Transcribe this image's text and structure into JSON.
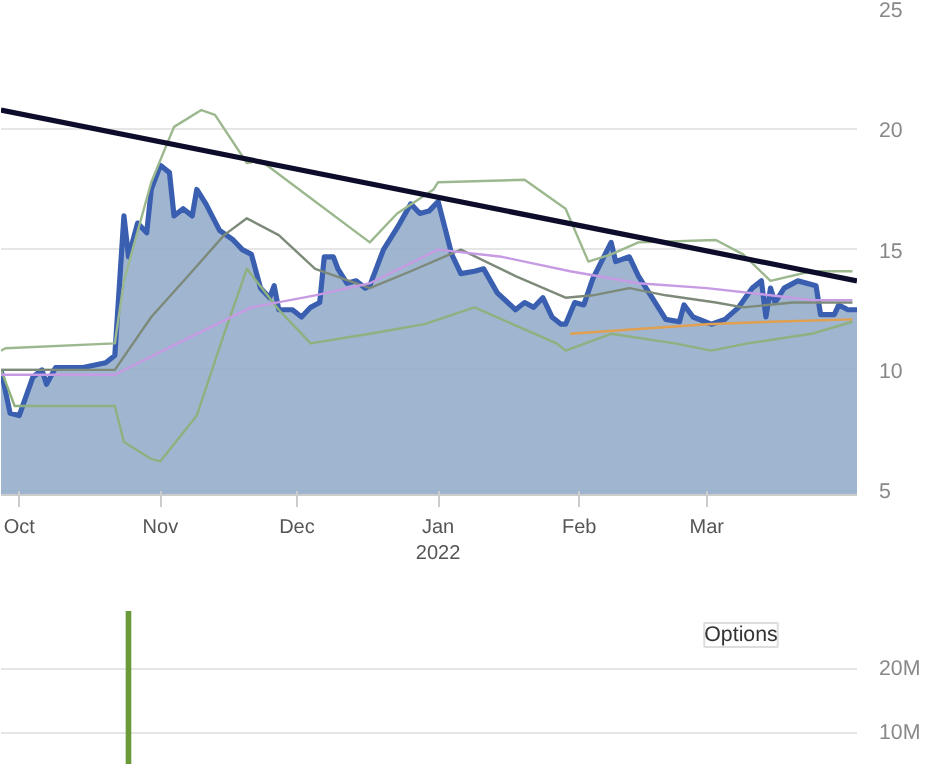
{
  "chart_data": [
    {
      "type": "line",
      "grid": "y",
      "tick_labels": "xy",
      "xlim": [
        "2021-09-27",
        "2022-04-03"
      ],
      "xticks": [
        {
          "value": "2021-10-01",
          "label": "Oct"
        },
        {
          "value": "2021-11-01",
          "label": "Nov"
        },
        {
          "value": "2021-12-01",
          "label": "Dec"
        },
        {
          "value": "2022-01-01",
          "label": "Jan\n2022"
        },
        {
          "value": "2022-02-01",
          "label": "Feb"
        },
        {
          "value": "2022-03-01",
          "label": "Mar"
        }
      ],
      "ylim": [
        4.8,
        25
      ],
      "yticks": [
        5,
        10,
        15,
        20,
        25
      ],
      "series": [
        {
          "type": "area",
          "color": "#3a5fb0",
          "x": [
            "2021-09-27",
            "2021-09-29",
            "2021-10-01",
            "2021-10-04",
            "2021-10-06",
            "2021-10-07",
            "2021-10-09",
            "2021-10-15",
            "2021-10-20",
            "2021-10-22",
            "2021-10-24",
            "2021-10-25",
            "2021-10-27",
            "2021-10-29",
            "2021-10-30",
            "2021-11-01",
            "2021-11-03",
            "2021-11-04",
            "2021-11-06",
            "2021-11-08",
            "2021-11-09",
            "2021-11-11",
            "2021-11-14",
            "2021-11-17",
            "2021-11-19",
            "2021-11-21",
            "2021-11-23",
            "2021-11-25",
            "2021-11-26",
            "2021-11-27",
            "2021-11-30",
            "2021-12-02",
            "2021-12-04",
            "2021-12-06",
            "2021-12-07",
            "2021-12-09",
            "2021-12-10",
            "2021-12-12",
            "2021-12-14",
            "2021-12-16",
            "2021-12-17",
            "2021-12-20",
            "2021-12-23",
            "2021-12-26",
            "2021-12-28",
            "2021-12-30",
            "2022-01-01",
            "2022-01-04",
            "2022-01-06",
            "2022-01-09",
            "2022-01-11",
            "2022-01-14",
            "2022-01-18",
            "2022-01-20",
            "2022-01-22",
            "2022-01-24",
            "2022-01-26",
            "2022-01-28",
            "2022-01-29",
            "2022-01-31",
            "2022-02-02",
            "2022-02-04",
            "2022-02-08",
            "2022-02-09",
            "2022-02-12",
            "2022-02-14",
            "2022-02-17",
            "2022-02-20",
            "2022-02-23",
            "2022-02-24",
            "2022-02-26",
            "2022-03-02",
            "2022-03-05",
            "2022-03-08",
            "2022-03-11",
            "2022-03-13",
            "2022-03-14",
            "2022-03-15",
            "2022-03-16",
            "2022-03-18",
            "2022-03-21",
            "2022-03-25",
            "2022-03-26",
            "2022-03-29",
            "2022-03-30",
            "2022-04-01",
            "2022-04-03"
          ],
          "values": [
            10.0,
            8.2,
            8.1,
            9.7,
            10.0,
            9.4,
            10.1,
            10.1,
            10.3,
            10.6,
            16.4,
            14.7,
            16.1,
            15.7,
            17.5,
            18.5,
            18.2,
            16.4,
            16.7,
            16.4,
            17.5,
            16.9,
            15.8,
            15.4,
            15.0,
            14.8,
            13.4,
            13.0,
            13.5,
            12.5,
            12.5,
            12.2,
            12.6,
            12.8,
            14.7,
            14.7,
            14.2,
            13.6,
            13.7,
            13.4,
            13.5,
            15.0,
            15.9,
            16.9,
            16.5,
            16.6,
            17.0,
            14.8,
            14.0,
            14.1,
            14.2,
            13.2,
            12.5,
            12.8,
            12.6,
            13.0,
            12.2,
            11.9,
            11.9,
            12.8,
            12.7,
            13.8,
            15.3,
            14.5,
            14.7,
            13.9,
            13.0,
            12.1,
            12.0,
            12.7,
            12.2,
            11.9,
            12.1,
            12.6,
            13.4,
            13.7,
            12.2,
            13.4,
            12.8,
            13.4,
            13.7,
            13.5,
            12.3,
            12.3,
            12.7,
            12.5,
            12.5
          ]
        },
        {
          "type": "line",
          "color": "#9cb88e",
          "x": [
            "2021-09-27",
            "2021-09-28",
            "2021-10-22",
            "2021-10-24",
            "2021-10-30",
            "2021-11-04",
            "2021-11-10",
            "2021-11-13",
            "2021-11-20",
            "2021-11-23",
            "2021-12-05",
            "2021-12-17",
            "2021-12-23",
            "2021-12-31",
            "2022-01-01",
            "2022-01-20",
            "2022-01-29",
            "2022-02-03",
            "2022-02-08",
            "2022-02-14",
            "2022-03-03",
            "2022-03-09",
            "2022-03-15",
            "2022-03-24",
            "2022-04-02"
          ],
          "values": [
            10.8,
            10.9,
            11.1,
            13.7,
            17.8,
            20.1,
            20.8,
            20.6,
            18.6,
            18.7,
            17.0,
            15.3,
            16.5,
            17.5,
            17.8,
            17.9,
            16.7,
            14.5,
            14.8,
            15.3,
            15.4,
            14.8,
            13.7,
            14.1,
            14.1
          ]
        },
        {
          "type": "line",
          "color": "#8fb07f",
          "x": [
            "2021-09-27",
            "2021-09-30",
            "2021-10-22",
            "2021-10-24",
            "2021-10-30",
            "2021-11-01",
            "2021-11-09",
            "2021-11-15",
            "2021-11-20",
            "2021-11-27",
            "2021-12-04",
            "2021-12-17",
            "2021-12-29",
            "2022-01-09",
            "2022-01-27",
            "2022-01-29",
            "2022-02-08",
            "2022-02-22",
            "2022-03-02",
            "2022-03-10",
            "2022-03-24",
            "2022-04-02"
          ],
          "values": [
            10.0,
            8.5,
            8.5,
            7.0,
            6.3,
            6.2,
            8.1,
            11.5,
            14.2,
            12.5,
            11.1,
            11.5,
            11.9,
            12.6,
            11.1,
            10.8,
            11.5,
            11.1,
            10.8,
            11.1,
            11.5,
            12.0
          ]
        },
        {
          "type": "line",
          "color": "#7d8a7a",
          "x": [
            "2021-09-27",
            "2021-10-22",
            "2021-10-30",
            "2021-11-08",
            "2021-11-15",
            "2021-11-20",
            "2021-11-27",
            "2021-12-05",
            "2021-12-17",
            "2021-12-26",
            "2022-01-06",
            "2022-01-18",
            "2022-01-29",
            "2022-02-04",
            "2022-02-12",
            "2022-02-20",
            "2022-03-03",
            "2022-03-09",
            "2022-03-20",
            "2022-04-02"
          ],
          "values": [
            10.0,
            10.0,
            12.2,
            14.1,
            15.6,
            16.3,
            15.6,
            14.2,
            13.4,
            14.1,
            15.0,
            13.9,
            13.0,
            13.1,
            13.4,
            13.1,
            12.8,
            12.6,
            12.8,
            12.8
          ]
        },
        {
          "type": "line",
          "color": "#c79be3",
          "x": [
            "2021-09-27",
            "2021-10-22",
            "2021-11-09",
            "2021-11-21",
            "2021-12-05",
            "2021-12-17",
            "2022-01-01",
            "2022-01-15",
            "2022-01-30",
            "2022-02-14",
            "2022-03-01",
            "2022-03-15",
            "2022-03-24",
            "2022-04-02"
          ],
          "values": [
            9.8,
            9.8,
            11.5,
            12.6,
            13.1,
            13.6,
            15.0,
            14.7,
            14.1,
            13.6,
            13.4,
            13.1,
            12.9,
            12.9
          ]
        },
        {
          "type": "line",
          "color": "#e0a050",
          "x": [
            "2022-01-30",
            "2022-02-14",
            "2022-03-01",
            "2022-03-15",
            "2022-04-02"
          ],
          "values": [
            11.5,
            11.7,
            11.9,
            12.0,
            12.1
          ]
        },
        {
          "type": "line",
          "color": "#0d0d2b",
          "x": [
            "2021-09-27",
            "2022-04-03"
          ],
          "values": [
            20.8,
            13.7
          ]
        }
      ]
    },
    {
      "type": "bar",
      "grid": "y",
      "tick_labels": "y",
      "xlim": [
        "2021-09-27",
        "2022-04-03"
      ],
      "ylim": [
        5000000,
        29000000
      ],
      "yticks": [
        {
          "value": 10000000,
          "label": "10M"
        },
        {
          "value": 20000000,
          "label": "20M"
        }
      ],
      "x": [
        "2021-10-25"
      ],
      "values": [
        29000000
      ],
      "color": "#6a9a3a",
      "annotations": [
        "Options"
      ]
    }
  ]
}
